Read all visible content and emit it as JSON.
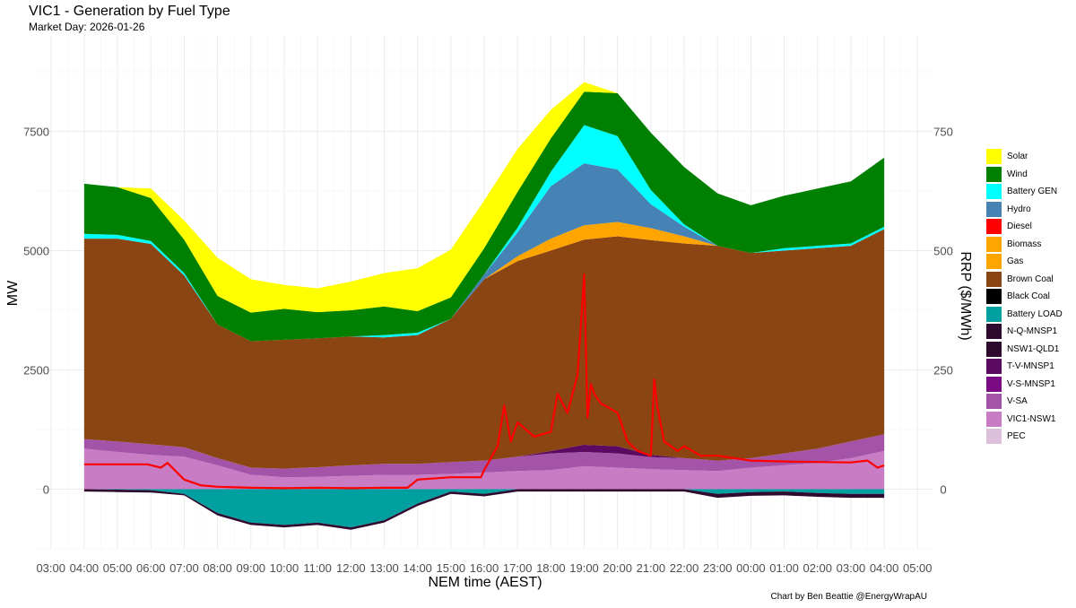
{
  "header": {
    "title": "VIC1 - Generation by Fuel Type",
    "subtitle": "Market Day: 2026-01-26",
    "caption": "Chart by Ben Beattie @EnergyWrapAU"
  },
  "chart_data": {
    "type": "area",
    "title": "VIC1 - Generation by Fuel Type",
    "subtitle": "Market Day: 2026-01-26",
    "xlabel": "NEM time (AEST)",
    "ylabel": "MW",
    "y2label": "RRP ($/MWh)",
    "x_ticks": [
      "03:00",
      "04:00",
      "05:00",
      "06:00",
      "07:00",
      "08:00",
      "09:00",
      "10:00",
      "11:00",
      "12:00",
      "13:00",
      "14:00",
      "15:00",
      "16:00",
      "17:00",
      "18:00",
      "19:00",
      "20:00",
      "21:00",
      "22:00",
      "23:00",
      "00:00",
      "01:00",
      "02:00",
      "03:00",
      "04:00",
      "05:00"
    ],
    "x_hours": [
      4,
      5,
      6,
      7,
      8,
      9,
      10,
      11,
      12,
      13,
      14,
      15,
      16,
      17,
      18,
      19,
      20,
      21,
      22,
      23,
      24,
      25,
      26,
      27,
      28
    ],
    "xlim_hours": [
      2.55,
      29.45
    ],
    "ylim": [
      -1250,
      9500
    ],
    "y_ticks": [
      0,
      2500,
      5000,
      7500
    ],
    "y2lim": [
      -125,
      950
    ],
    "y2_ticks": [
      0,
      250,
      500,
      750
    ],
    "grid": true,
    "legend_position": "right",
    "stack_positive_order": [
      "VIC1-NSW1",
      "V-SA",
      "N-Q-MNSP1",
      "Brown Coal",
      "Gas",
      "Hydro",
      "Battery GEN",
      "Wind",
      "Solar"
    ],
    "series": [
      {
        "name": "VIC1-NSW1",
        "color": "#C77CC3",
        "sign": "positive",
        "values": [
          850,
          780,
          720,
          680,
          500,
          300,
          250,
          260,
          280,
          300,
          300,
          320,
          350,
          380,
          400,
          480,
          450,
          420,
          400,
          380,
          450,
          500,
          550,
          650,
          800
        ]
      },
      {
        "name": "V-SA",
        "color": "#A454A8",
        "sign": "positive",
        "values": [
          200,
          220,
          220,
          200,
          150,
          150,
          180,
          200,
          220,
          230,
          230,
          250,
          250,
          300,
          350,
          300,
          300,
          250,
          250,
          220,
          200,
          250,
          300,
          350,
          350
        ]
      },
      {
        "name": "N-Q-MNSP1",
        "color": "#5A0A60",
        "sign": "positive",
        "values": [
          0,
          0,
          0,
          0,
          0,
          0,
          0,
          0,
          0,
          0,
          0,
          0,
          0,
          0,
          50,
          150,
          150,
          50,
          0,
          0,
          0,
          0,
          0,
          0,
          0
        ]
      },
      {
        "name": "Brown Coal",
        "color": "#8B4513",
        "sign": "positive",
        "values": [
          4200,
          4250,
          4200,
          3600,
          2800,
          2650,
          2700,
          2700,
          2700,
          2650,
          2700,
          3000,
          3800,
          4100,
          4200,
          4300,
          4400,
          4500,
          4500,
          4500,
          4300,
          4250,
          4200,
          4100,
          4300
        ]
      },
      {
        "name": "Gas",
        "color": "#FFA500",
        "sign": "positive",
        "values": [
          0,
          0,
          0,
          0,
          0,
          0,
          0,
          0,
          0,
          0,
          0,
          0,
          0,
          100,
          250,
          300,
          300,
          250,
          150,
          0,
          0,
          0,
          0,
          0,
          0
        ]
      },
      {
        "name": "Hydro",
        "color": "#4682B4",
        "sign": "positive",
        "values": [
          0,
          0,
          0,
          0,
          0,
          0,
          0,
          0,
          0,
          0,
          0,
          0,
          100,
          500,
          1100,
          1300,
          1100,
          500,
          200,
          0,
          0,
          0,
          0,
          0,
          0
        ]
      },
      {
        "name": "Battery GEN",
        "color": "#00FFFF",
        "sign": "positive",
        "values": [
          100,
          80,
          60,
          50,
          0,
          0,
          0,
          0,
          0,
          50,
          50,
          0,
          0,
          100,
          300,
          800,
          700,
          300,
          50,
          0,
          0,
          50,
          50,
          50,
          50
        ]
      },
      {
        "name": "Wind",
        "color": "#008000",
        "sign": "positive",
        "values": [
          1050,
          1000,
          900,
          700,
          600,
          600,
          650,
          550,
          550,
          600,
          450,
          450,
          550,
          750,
          700,
          700,
          900,
          1200,
          1200,
          1100,
          1000,
          1100,
          1200,
          1300,
          1450
        ]
      },
      {
        "name": "Solar",
        "color": "#FFFF00",
        "sign": "positive",
        "values": [
          0,
          0,
          200,
          400,
          800,
          700,
          500,
          500,
          600,
          700,
          900,
          1000,
          1000,
          900,
          600,
          200,
          0,
          0,
          0,
          0,
          0,
          0,
          0,
          0,
          0
        ]
      },
      {
        "name": "Battery LOAD",
        "color": "#00A0A0",
        "sign": "negative",
        "values": [
          0,
          -10,
          -20,
          -100,
          -500,
          -700,
          -750,
          -700,
          -800,
          -650,
          -300,
          -50,
          -100,
          0,
          0,
          0,
          0,
          0,
          0,
          -100,
          -60,
          -50,
          -80,
          -100,
          -100
        ]
      },
      {
        "name": "NSW1-QLD1",
        "color": "#2D0A2E",
        "sign": "negative",
        "values": [
          -50,
          -50,
          -50,
          -30,
          -50,
          -50,
          -50,
          -50,
          -50,
          -50,
          -50,
          -50,
          -50,
          -50,
          -50,
          -50,
          -50,
          -50,
          -50,
          -80,
          -80,
          -80,
          -80,
          -80,
          -80
        ]
      }
    ],
    "rrp": {
      "name": "RRP",
      "color": "#FF0000",
      "x_hours": [
        4,
        5,
        5.9,
        6.3,
        6.5,
        7,
        7.5,
        8,
        9,
        10,
        11,
        12,
        13,
        13.7,
        14,
        15,
        15.9,
        16,
        16.4,
        16.6,
        16.8,
        17,
        17.5,
        18,
        18.2,
        18.5,
        18.8,
        19,
        19.1,
        19.2,
        19.3,
        19.5,
        20,
        20.3,
        20.6,
        21,
        21.1,
        21.2,
        21.4,
        21.8,
        22,
        22.5,
        23,
        24,
        25,
        26,
        27,
        27.5,
        27.8,
        28
      ],
      "values": [
        52,
        52,
        52,
        45,
        55,
        20,
        8,
        5,
        3,
        2,
        3,
        2,
        3,
        3,
        20,
        25,
        25,
        40,
        90,
        175,
        100,
        140,
        110,
        120,
        200,
        160,
        240,
        450,
        150,
        220,
        200,
        180,
        160,
        100,
        80,
        70,
        230,
        170,
        100,
        80,
        90,
        70,
        70,
        60,
        58,
        57,
        56,
        60,
        45,
        50
      ]
    },
    "legend": [
      "Solar",
      "Wind",
      "Battery GEN",
      "Hydro",
      "Diesel",
      "Biomass",
      "Gas",
      "Brown Coal",
      "Black Coal",
      "Battery LOAD",
      "N-Q-MNSP1",
      "NSW1-QLD1",
      "T-V-MNSP1",
      "V-S-MNSP1",
      "V-SA",
      "VIC1-NSW1",
      "PEC"
    ],
    "legend_colors": [
      "#FFFF00",
      "#008000",
      "#00FFFF",
      "#4682B4",
      "#FF0000",
      "#FFA500",
      "#FFA500",
      "#8B4513",
      "#000000",
      "#00A0A0",
      "#2D0A2E",
      "#2D0A2E",
      "#5A0A60",
      "#7B0A85",
      "#A454A8",
      "#C77CC3",
      "#DCC0DC"
    ]
  }
}
